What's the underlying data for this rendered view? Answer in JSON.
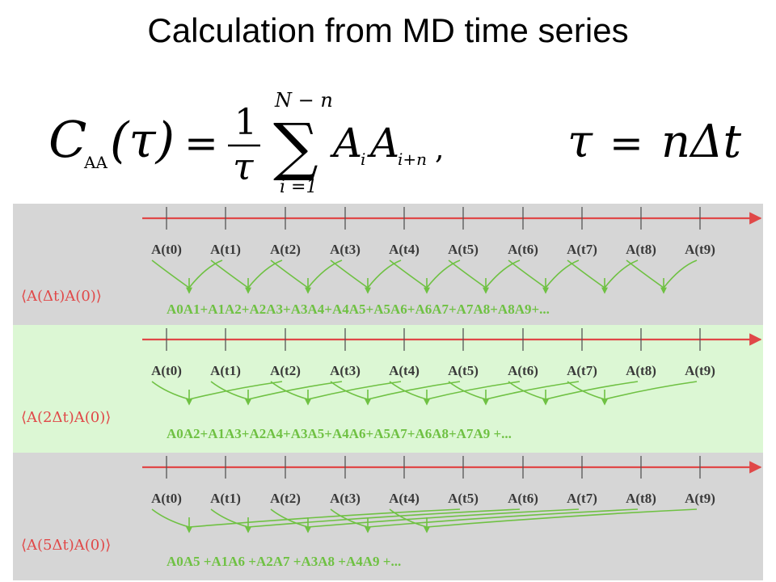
{
  "title": "Calculation from MD time series",
  "formula": {
    "lhs_C": "C",
    "lhs_sub": "AA",
    "lhs_arg": "(τ)",
    "eq1": "=",
    "frac_num": "1",
    "frac_den": "τ",
    "sum_upper": "N − n",
    "sum_symbol": "∑",
    "sum_lower": "i =1",
    "summand_A1": "A",
    "summand_sub1": "i",
    "summand_A2": "A",
    "summand_sub2": "i+n",
    "comma": ",",
    "rhs_tau": "τ",
    "eq2": "=",
    "rhs_value": "nΔt"
  },
  "colors": {
    "panel_gray": "#d6d6d6",
    "panel_green": "#dcf7d4",
    "axis_red": "#e04848",
    "arrow_green": "#6fc143",
    "label_dark": "#3a3a3a",
    "correlation_red": "#e04848"
  },
  "time_labels": [
    "A(t0)",
    "A(t1)",
    "A(t2)",
    "A(t3)",
    "A(t4)",
    "A(t5)",
    "A(t6)",
    "A(t7)",
    "A(t8)",
    "A(t9)"
  ],
  "panels": [
    {
      "lag": 1,
      "correlation_label": "⟨A(Δt)A(0)⟩",
      "sum_text": "A0A1+A1A2+A2A3+A3A4+A4A5+A5A6+A6A7+A7A8+A8A9+..."
    },
    {
      "lag": 2,
      "correlation_label": "⟨A(2Δt)A(0)⟩",
      "sum_text": "A0A2+A1A3+A2A4+A3A5+A4A6+A5A7+A6A8+A7A9 +..."
    },
    {
      "lag": 5,
      "correlation_label": "⟨A(5Δt)A(0)⟩",
      "sum_text": "A0A5 +A1A6 +A2A7 +A3A8 +A4A9 +..."
    }
  ]
}
